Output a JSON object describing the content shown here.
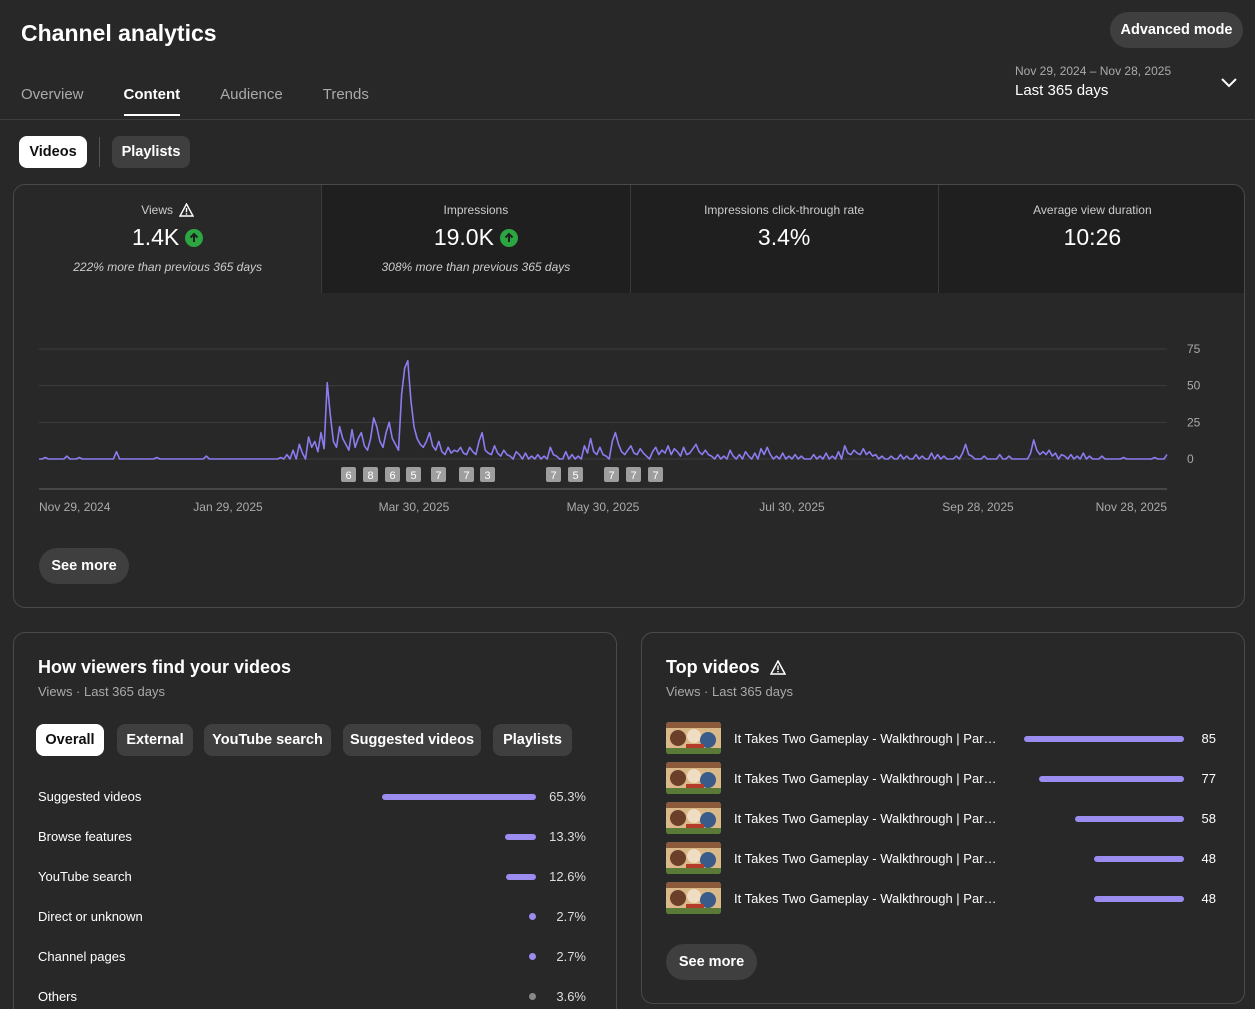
{
  "header": {
    "title": "Channel analytics",
    "advanced_mode": "Advanced mode"
  },
  "tabs": [
    "Overview",
    "Content",
    "Audience",
    "Trends"
  ],
  "active_tab": "Content",
  "date": {
    "range": "Nov 29, 2024 – Nov 28, 2025",
    "label": "Last 365 days"
  },
  "content_type": {
    "videos": "Videos",
    "playlists": "Playlists",
    "selected": "Videos"
  },
  "metrics": [
    {
      "label": "Views",
      "value": "1.4K",
      "sub": "222% more than previous 365 days",
      "warning": true,
      "trend": "up"
    },
    {
      "label": "Impressions",
      "value": "19.0K",
      "sub": "308% more than previous 365 days",
      "warning": false,
      "trend": "up"
    },
    {
      "label": "Impressions click-through rate",
      "value": "3.4%",
      "sub": "",
      "warning": false,
      "trend": ""
    },
    {
      "label": "Average view duration",
      "value": "10:26",
      "sub": "",
      "warning": false,
      "trend": ""
    }
  ],
  "chart_data": {
    "type": "line",
    "x_labels": [
      "Nov 29, 2024",
      "Jan 29, 2025",
      "Mar 30, 2025",
      "May 30, 2025",
      "Jul 30, 2025",
      "Sep 28, 2025",
      "Nov 28, 2025"
    ],
    "y_ticks": [
      0,
      25,
      50,
      75
    ],
    "ylim": [
      0,
      75
    ],
    "series_color": "#8b7cf0",
    "series": [
      {
        "values": [
          0,
          0,
          1,
          0,
          0,
          0,
          0,
          0,
          0,
          2,
          0,
          0,
          0,
          1,
          0,
          0,
          0,
          0,
          0,
          0,
          0,
          0,
          0,
          0,
          0,
          5,
          0,
          0,
          0,
          0,
          0,
          0,
          0,
          0,
          0,
          0,
          0,
          0,
          1,
          0,
          0,
          0,
          0,
          0,
          0,
          0,
          0,
          0,
          0,
          0,
          0,
          0,
          0,
          0,
          2,
          0,
          0,
          0,
          0,
          0,
          0,
          0,
          0,
          0,
          0,
          0,
          0,
          0,
          0,
          0,
          0,
          0,
          0,
          0,
          0,
          0,
          0,
          0,
          0,
          0,
          0,
          0,
          0,
          0,
          0,
          0,
          0,
          0,
          0,
          0,
          1,
          0,
          0,
          0,
          0,
          0,
          0,
          0,
          0,
          0,
          0,
          0,
          0,
          0,
          0,
          0,
          0,
          0,
          0,
          0,
          0,
          0,
          0,
          0,
          0,
          0,
          0,
          0,
          0,
          0,
          0,
          0,
          0,
          0,
          0,
          0,
          0,
          0,
          0,
          0,
          0,
          0,
          0,
          0,
          0,
          0,
          1,
          0,
          0,
          0,
          0,
          0,
          0,
          0,
          0,
          2,
          0,
          0,
          0,
          1,
          0,
          0,
          0,
          0,
          0,
          0,
          0,
          0,
          0,
          0,
          0,
          0,
          0,
          0,
          0,
          0,
          0,
          0,
          0,
          0,
          0,
          0,
          0,
          0,
          0,
          0,
          0,
          0,
          0,
          0,
          0,
          0,
          0,
          0,
          0,
          0,
          0,
          0,
          0,
          0,
          0,
          0,
          0,
          0,
          0,
          0,
          0,
          0,
          0,
          0,
          0,
          0,
          0,
          0,
          0,
          0,
          0,
          0,
          0,
          0,
          0,
          0,
          0,
          0,
          0,
          0,
          0,
          0,
          0,
          0,
          0,
          0,
          0,
          0,
          0,
          0,
          0,
          0,
          0,
          0,
          0,
          0,
          0,
          0,
          0,
          0,
          0,
          0,
          0,
          0,
          0,
          0,
          0,
          0,
          0,
          0,
          0,
          0,
          0,
          0,
          0,
          0,
          0,
          0,
          0,
          0,
          0,
          0,
          0,
          0,
          0,
          0,
          0,
          0,
          0,
          0,
          0,
          0,
          0,
          0,
          0,
          0,
          0,
          0,
          0,
          0,
          0,
          0,
          0,
          0,
          0,
          0,
          0,
          0,
          0,
          0,
          0,
          0,
          0,
          0,
          0,
          0,
          0,
          0,
          0,
          0,
          0,
          0,
          0,
          0,
          0,
          0,
          0,
          0,
          0,
          0,
          0,
          0,
          0,
          0,
          0,
          0,
          0,
          0,
          0,
          0,
          0,
          0,
          0,
          0,
          0,
          0,
          0,
          0,
          0,
          0,
          0,
          0,
          0,
          0,
          0,
          0,
          0,
          0,
          0,
          0,
          0,
          0,
          0,
          0,
          0,
          0,
          0,
          0,
          0,
          0,
          0,
          0,
          0,
          0,
          0,
          0,
          0,
          0,
          0,
          0,
          0,
          0,
          0,
          0,
          0,
          0,
          0,
          0,
          0
        ]
      }
    ],
    "spikes": [
      [
        78,
        1
      ],
      [
        80,
        3
      ],
      [
        82,
        6
      ],
      [
        84,
        10
      ],
      [
        85,
        4
      ],
      [
        87,
        15
      ],
      [
        88,
        8
      ],
      [
        89,
        12
      ],
      [
        90,
        5
      ],
      [
        91,
        18
      ],
      [
        92,
        7
      ],
      [
        93,
        52
      ],
      [
        94,
        30
      ],
      [
        95,
        12
      ],
      [
        96,
        8
      ],
      [
        97,
        22
      ],
      [
        98,
        14
      ],
      [
        99,
        10
      ],
      [
        100,
        6
      ],
      [
        101,
        20
      ],
      [
        102,
        8
      ],
      [
        103,
        14
      ],
      [
        104,
        18
      ],
      [
        105,
        9
      ],
      [
        106,
        6
      ],
      [
        107,
        14
      ],
      [
        108,
        28
      ],
      [
        109,
        22
      ],
      [
        110,
        12
      ],
      [
        111,
        8
      ],
      [
        112,
        18
      ],
      [
        113,
        25
      ],
      [
        114,
        14
      ],
      [
        115,
        10
      ],
      [
        116,
        6
      ],
      [
        117,
        44
      ],
      [
        118,
        62
      ],
      [
        119,
        67
      ],
      [
        120,
        40
      ],
      [
        121,
        22
      ],
      [
        122,
        14
      ],
      [
        123,
        10
      ],
      [
        124,
        8
      ],
      [
        125,
        12
      ],
      [
        126,
        18
      ],
      [
        127,
        9
      ],
      [
        128,
        6
      ],
      [
        129,
        12
      ],
      [
        130,
        5
      ],
      [
        131,
        3
      ],
      [
        132,
        8
      ],
      [
        133,
        4
      ],
      [
        134,
        6
      ],
      [
        135,
        5
      ],
      [
        136,
        8
      ],
      [
        137,
        4
      ],
      [
        138,
        3
      ],
      [
        139,
        8
      ],
      [
        140,
        5
      ],
      [
        141,
        3
      ],
      [
        142,
        12
      ],
      [
        143,
        18
      ],
      [
        144,
        6
      ],
      [
        145,
        4
      ],
      [
        146,
        3
      ],
      [
        147,
        9
      ],
      [
        148,
        4
      ],
      [
        149,
        2
      ],
      [
        150,
        6
      ],
      [
        151,
        3
      ],
      [
        152,
        2
      ],
      [
        154,
        5
      ],
      [
        155,
        3
      ],
      [
        157,
        4
      ],
      [
        159,
        2
      ],
      [
        161,
        3
      ],
      [
        163,
        2
      ],
      [
        165,
        8
      ],
      [
        166,
        3
      ],
      [
        167,
        2
      ],
      [
        170,
        5
      ],
      [
        172,
        3
      ],
      [
        174,
        2
      ],
      [
        176,
        9
      ],
      [
        177,
        4
      ],
      [
        178,
        14
      ],
      [
        179,
        5
      ],
      [
        180,
        3
      ],
      [
        181,
        8
      ],
      [
        182,
        3
      ],
      [
        183,
        2
      ],
      [
        185,
        12
      ],
      [
        186,
        18
      ],
      [
        187,
        10
      ],
      [
        188,
        5
      ],
      [
        189,
        3
      ],
      [
        190,
        6
      ],
      [
        191,
        9
      ],
      [
        192,
        4
      ],
      [
        193,
        3
      ],
      [
        194,
        7
      ],
      [
        195,
        4
      ],
      [
        196,
        2
      ],
      [
        198,
        5
      ],
      [
        199,
        8
      ],
      [
        200,
        3
      ],
      [
        201,
        6
      ],
      [
        202,
        4
      ],
      [
        203,
        9
      ],
      [
        204,
        3
      ],
      [
        205,
        7
      ],
      [
        206,
        5
      ],
      [
        207,
        2
      ],
      [
        208,
        8
      ],
      [
        209,
        3
      ],
      [
        210,
        4
      ],
      [
        211,
        7
      ],
      [
        212,
        10
      ],
      [
        213,
        5
      ],
      [
        214,
        3
      ],
      [
        215,
        6
      ],
      [
        216,
        3
      ],
      [
        217,
        2
      ],
      [
        219,
        3
      ],
      [
        221,
        2
      ],
      [
        223,
        6
      ],
      [
        224,
        2
      ],
      [
        226,
        3
      ],
      [
        228,
        5
      ],
      [
        229,
        2
      ],
      [
        231,
        4
      ],
      [
        233,
        7
      ],
      [
        234,
        3
      ],
      [
        235,
        8
      ],
      [
        236,
        3
      ],
      [
        238,
        2
      ],
      [
        240,
        4
      ],
      [
        242,
        2
      ],
      [
        244,
        3
      ],
      [
        246,
        2
      ],
      [
        250,
        3
      ],
      [
        252,
        2
      ],
      [
        254,
        4
      ],
      [
        256,
        2
      ],
      [
        258,
        5
      ],
      [
        260,
        9
      ],
      [
        261,
        4
      ],
      [
        262,
        3
      ],
      [
        263,
        6
      ],
      [
        264,
        4
      ],
      [
        265,
        3
      ],
      [
        266,
        7
      ],
      [
        267,
        3
      ],
      [
        268,
        5
      ],
      [
        269,
        2
      ],
      [
        270,
        3
      ],
      [
        272,
        2
      ],
      [
        275,
        2
      ],
      [
        278,
        3
      ],
      [
        280,
        2
      ],
      [
        283,
        3
      ],
      [
        285,
        2
      ],
      [
        288,
        4
      ],
      [
        290,
        3
      ],
      [
        292,
        2
      ],
      [
        296,
        2
      ],
      [
        298,
        4
      ],
      [
        299,
        10
      ],
      [
        300,
        3
      ],
      [
        301,
        2
      ],
      [
        305,
        2
      ],
      [
        310,
        3
      ],
      [
        313,
        2
      ],
      [
        320,
        4
      ],
      [
        321,
        13
      ],
      [
        322,
        6
      ],
      [
        323,
        3
      ],
      [
        324,
        5
      ],
      [
        325,
        3
      ],
      [
        326,
        6
      ],
      [
        327,
        2
      ],
      [
        328,
        4
      ],
      [
        330,
        3
      ],
      [
        331,
        2
      ],
      [
        333,
        3
      ],
      [
        335,
        2
      ],
      [
        337,
        4
      ],
      [
        339,
        2
      ],
      [
        343,
        2
      ],
      [
        350,
        1
      ],
      [
        360,
        1
      ],
      [
        364,
        3
      ]
    ],
    "markers": [
      "6",
      "8",
      "6",
      "5",
      "7",
      "7",
      "3",
      "7",
      "5",
      "7",
      "7",
      "7"
    ]
  },
  "see_more": "See more",
  "traffic": {
    "title": "How viewers find your videos",
    "subtitle": "Views · Last 365 days",
    "filters": [
      "Overall",
      "External",
      "YouTube search",
      "Suggested videos",
      "Playlists"
    ],
    "selected_filter": "Overall",
    "rows": [
      {
        "label": "Suggested videos",
        "value": "65.3%",
        "pct": 65.3
      },
      {
        "label": "Browse features",
        "value": "13.3%",
        "pct": 13.3
      },
      {
        "label": "YouTube search",
        "value": "12.6%",
        "pct": 12.6
      },
      {
        "label": "Direct or unknown",
        "value": "2.7%",
        "pct": 2.7
      },
      {
        "label": "Channel pages",
        "value": "2.7%",
        "pct": 2.7
      },
      {
        "label": "Others",
        "value": "3.6%",
        "pct": 3.6
      }
    ],
    "others_color": "#888888"
  },
  "top_videos": {
    "title": "Top videos",
    "subtitle": "Views · Last 365 days",
    "rows": [
      {
        "title": "It Takes Two Gameplay - Walkthrough | Par…",
        "views": "85",
        "value": 85
      },
      {
        "title": "It Takes Two Gameplay - Walkthrough | Par…",
        "views": "77",
        "value": 77
      },
      {
        "title": "It Takes Two Gameplay - Walkthrough | Par…",
        "views": "58",
        "value": 58
      },
      {
        "title": "It Takes Two Gameplay - Walkthrough | Par…",
        "views": "48",
        "value": 48
      },
      {
        "title": "It Takes Two Gameplay - Walkthrough | Par…",
        "views": "48",
        "value": 48
      }
    ],
    "see_more": "See more"
  },
  "colors": {
    "accent": "#9b8cf0",
    "up": "#2ba640"
  }
}
